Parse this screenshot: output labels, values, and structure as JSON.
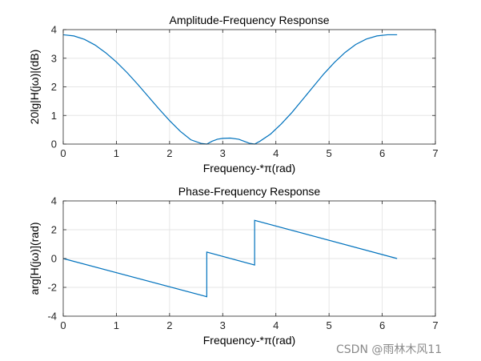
{
  "chart_data": [
    {
      "type": "line",
      "title": "Amplitude-Frequency Response",
      "xlabel": "Frequency-*π(rad)",
      "ylabel": "20lg|H(jω)|(dB)",
      "xlim": [
        0,
        7
      ],
      "ylim": [
        0,
        4
      ],
      "xticks": [
        0,
        1,
        2,
        3,
        4,
        5,
        6,
        7
      ],
      "yticks": [
        0,
        1,
        2,
        3,
        4
      ],
      "grid": true,
      "color": "#0072BD",
      "x": [
        0,
        0.2,
        0.4,
        0.6,
        0.8,
        1.0,
        1.2,
        1.4,
        1.6,
        1.8,
        2.0,
        2.2,
        2.4,
        2.6,
        2.7,
        2.8,
        2.9,
        3.0,
        3.14,
        3.3,
        3.4,
        3.5,
        3.6,
        3.7,
        3.9,
        4.1,
        4.3,
        4.5,
        4.7,
        4.9,
        5.1,
        5.3,
        5.5,
        5.7,
        5.9,
        6.1,
        6.28
      ],
      "y": [
        3.82,
        3.78,
        3.66,
        3.46,
        3.19,
        2.87,
        2.5,
        2.09,
        1.66,
        1.23,
        0.82,
        0.45,
        0.15,
        0.02,
        0.0,
        0.1,
        0.17,
        0.2,
        0.21,
        0.17,
        0.1,
        0.03,
        0.0,
        0.1,
        0.35,
        0.7,
        1.1,
        1.55,
        2.0,
        2.45,
        2.85,
        3.2,
        3.48,
        3.67,
        3.78,
        3.82,
        3.82
      ]
    },
    {
      "type": "line",
      "title": "Phase-Frequency Response",
      "xlabel": "Frequency-*π(rad)",
      "ylabel": "arg[H(jω)](rad)",
      "xlim": [
        0,
        7
      ],
      "ylim": [
        -4,
        4
      ],
      "xticks": [
        0,
        1,
        2,
        3,
        4,
        5,
        6,
        7
      ],
      "yticks": [
        -4,
        -2,
        0,
        2,
        4
      ],
      "grid": true,
      "color": "#0072BD",
      "x": [
        0,
        2.7,
        2.7,
        3.6,
        3.6,
        6.28
      ],
      "y": [
        0,
        -2.65,
        0.45,
        -0.45,
        2.65,
        0
      ]
    }
  ],
  "watermark": "CSDN @雨林木风11"
}
